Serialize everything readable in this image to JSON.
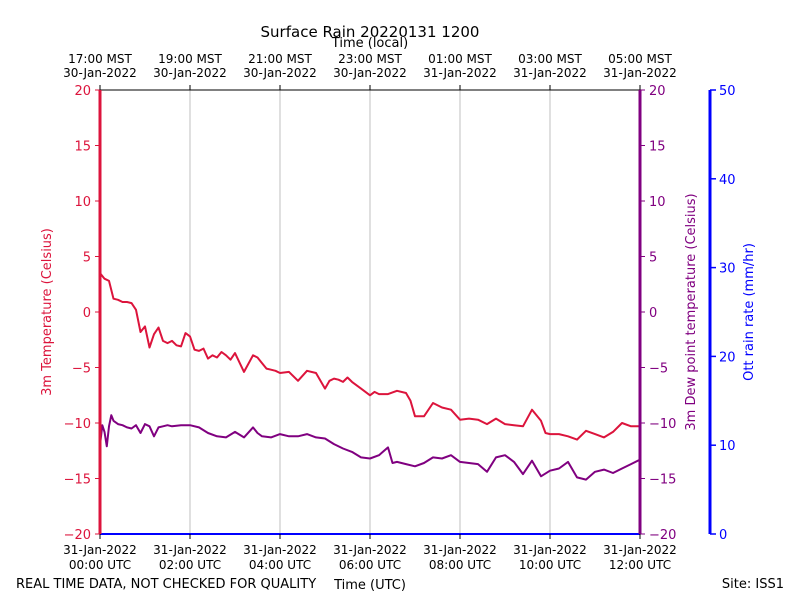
{
  "chart_data": {
    "type": "line",
    "title": "Surface Rain 20220131 1200",
    "xlabel": "Time (UTC)",
    "x2label": "Time (local)",
    "ylabel_left": "3m Temperature (Celsius)",
    "ylabel_mid": "3m Dew point temperature (Celsius)",
    "ylabel_right": "Ott rain rate (mm/hr)",
    "footer_left": "REAL TIME DATA, NOT CHECKED FOR QUALITY",
    "footer_right": "Site: ISS1",
    "xlim_hours": [
      0,
      12
    ],
    "ylim_temp": [
      -20,
      20
    ],
    "ylim_rain": [
      0,
      50
    ],
    "grid": "vertical",
    "temp_ticks": [
      "20",
      "15",
      "10",
      "5",
      "0",
      "−5",
      "−10",
      "−15",
      "−20"
    ],
    "rain_ticks": [
      "50",
      "40",
      "30",
      "20",
      "10",
      "0"
    ],
    "x_ticks_utc": [
      {
        "line1": "31-Jan-2022",
        "line2": "00:00 UTC"
      },
      {
        "line1": "31-Jan-2022",
        "line2": "02:00 UTC"
      },
      {
        "line1": "31-Jan-2022",
        "line2": "04:00 UTC"
      },
      {
        "line1": "31-Jan-2022",
        "line2": "06:00 UTC"
      },
      {
        "line1": "31-Jan-2022",
        "line2": "08:00 UTC"
      },
      {
        "line1": "31-Jan-2022",
        "line2": "10:00 UTC"
      },
      {
        "line1": "31-Jan-2022",
        "line2": "12:00 UTC"
      }
    ],
    "x_ticks_local": [
      {
        "line1": "17:00 MST",
        "line2": "30-Jan-2022"
      },
      {
        "line1": "19:00 MST",
        "line2": "30-Jan-2022"
      },
      {
        "line1": "21:00 MST",
        "line2": "30-Jan-2022"
      },
      {
        "line1": "23:00 MST",
        "line2": "30-Jan-2022"
      },
      {
        "line1": "01:00 MST",
        "line2": "31-Jan-2022"
      },
      {
        "line1": "03:00 MST",
        "line2": "31-Jan-2022"
      },
      {
        "line1": "05:00 MST",
        "line2": "31-Jan-2022"
      }
    ],
    "colors": {
      "temperature": "#dc143c",
      "dewpoint": "#800080",
      "rain": "#0000ff",
      "grid": "#b0b0b0",
      "axis": "#000000"
    },
    "series": [
      {
        "name": "3m Temperature",
        "x_hours": [
          0,
          0.1,
          0.2,
          0.3,
          0.4,
          0.5,
          0.6,
          0.7,
          0.8,
          0.9,
          1.0,
          1.1,
          1.2,
          1.3,
          1.4,
          1.5,
          1.6,
          1.7,
          1.8,
          1.9,
          2.0,
          2.1,
          2.2,
          2.3,
          2.4,
          2.5,
          2.6,
          2.7,
          2.8,
          2.9,
          3.0,
          3.2,
          3.4,
          3.5,
          3.6,
          3.7,
          3.8,
          3.9,
          4.0,
          4.2,
          4.4,
          4.6,
          4.8,
          5.0,
          5.1,
          5.2,
          5.3,
          5.4,
          5.5,
          5.6,
          5.8,
          6.0,
          6.1,
          6.2,
          6.4,
          6.6,
          6.8,
          6.9,
          7.0,
          7.2,
          7.4,
          7.6,
          7.8,
          8.0,
          8.2,
          8.4,
          8.6,
          8.8,
          9.0,
          9.2,
          9.4,
          9.6,
          9.8,
          9.9,
          10.0,
          10.2,
          10.4,
          10.6,
          10.8,
          11.0,
          11.2,
          11.4,
          11.6,
          11.8,
          12.0
        ],
        "values": [
          3.5,
          3.0,
          2.8,
          1.2,
          1.1,
          0.9,
          0.9,
          0.8,
          0.2,
          -1.8,
          -1.3,
          -3.2,
          -2.0,
          -1.4,
          -2.6,
          -2.8,
          -2.6,
          -3.0,
          -3.1,
          -1.9,
          -2.2,
          -3.4,
          -3.5,
          -3.3,
          -4.2,
          -3.9,
          -4.1,
          -3.6,
          -3.9,
          -4.3,
          -3.7,
          -5.4,
          -3.9,
          -4.1,
          -4.6,
          -5.1,
          -5.2,
          -5.3,
          -5.5,
          -5.4,
          -6.2,
          -5.3,
          -5.5,
          -6.9,
          -6.2,
          -6.0,
          -6.1,
          -6.3,
          -5.9,
          -6.3,
          -6.9,
          -7.5,
          -7.2,
          -7.4,
          -7.4,
          -7.1,
          -7.3,
          -8.0,
          -9.4,
          -9.4,
          -8.2,
          -8.6,
          -8.8,
          -9.7,
          -9.6,
          -9.7,
          -10.1,
          -9.6,
          -10.1,
          -10.2,
          -10.3,
          -8.8,
          -9.8,
          -10.9,
          -11.0,
          -11.0,
          -11.2,
          -11.5,
          -10.7,
          -11.0,
          -11.3,
          -10.8,
          -10.0,
          -10.3,
          -10.3
        ]
      },
      {
        "name": "3m Dew point temperature",
        "x_hours": [
          0,
          0.05,
          0.1,
          0.15,
          0.2,
          0.25,
          0.3,
          0.4,
          0.5,
          0.6,
          0.7,
          0.8,
          0.9,
          1.0,
          1.1,
          1.2,
          1.3,
          1.4,
          1.5,
          1.6,
          1.8,
          2.0,
          2.2,
          2.4,
          2.6,
          2.8,
          3.0,
          3.2,
          3.4,
          3.5,
          3.6,
          3.8,
          4.0,
          4.2,
          4.4,
          4.6,
          4.8,
          5.0,
          5.2,
          5.4,
          5.6,
          5.8,
          6.0,
          6.2,
          6.4,
          6.5,
          6.6,
          6.8,
          7.0,
          7.2,
          7.4,
          7.6,
          7.8,
          8.0,
          8.2,
          8.4,
          8.6,
          8.8,
          9.0,
          9.2,
          9.4,
          9.6,
          9.8,
          10.0,
          10.2,
          10.4,
          10.6,
          10.8,
          11.0,
          11.2,
          11.4,
          11.6,
          11.8,
          12.0
        ],
        "values": [
          -12.0,
          -10.2,
          -10.8,
          -12.1,
          -10.3,
          -9.3,
          -9.8,
          -10.1,
          -10.2,
          -10.4,
          -10.5,
          -10.2,
          -10.9,
          -10.1,
          -10.3,
          -11.2,
          -10.4,
          -10.3,
          -10.2,
          -10.3,
          -10.2,
          -10.2,
          -10.4,
          -10.9,
          -11.2,
          -11.3,
          -10.8,
          -11.3,
          -10.4,
          -10.9,
          -11.2,
          -11.3,
          -11.0,
          -11.2,
          -11.2,
          -11.0,
          -11.3,
          -11.4,
          -11.9,
          -12.3,
          -12.6,
          -13.1,
          -13.2,
          -12.9,
          -12.2,
          -13.6,
          -13.5,
          -13.7,
          -13.9,
          -13.6,
          -13.1,
          -13.2,
          -12.9,
          -13.5,
          -13.6,
          -13.7,
          -14.4,
          -13.1,
          -12.9,
          -13.5,
          -14.6,
          -13.4,
          -14.8,
          -14.3,
          -14.1,
          -13.5,
          -14.9,
          -15.1,
          -14.4,
          -14.2,
          -14.5,
          -14.1,
          -13.7,
          -13.3
        ]
      },
      {
        "name": "Ott rain rate",
        "x_hours": [
          0,
          12
        ],
        "values": [
          0,
          0
        ]
      }
    ]
  }
}
